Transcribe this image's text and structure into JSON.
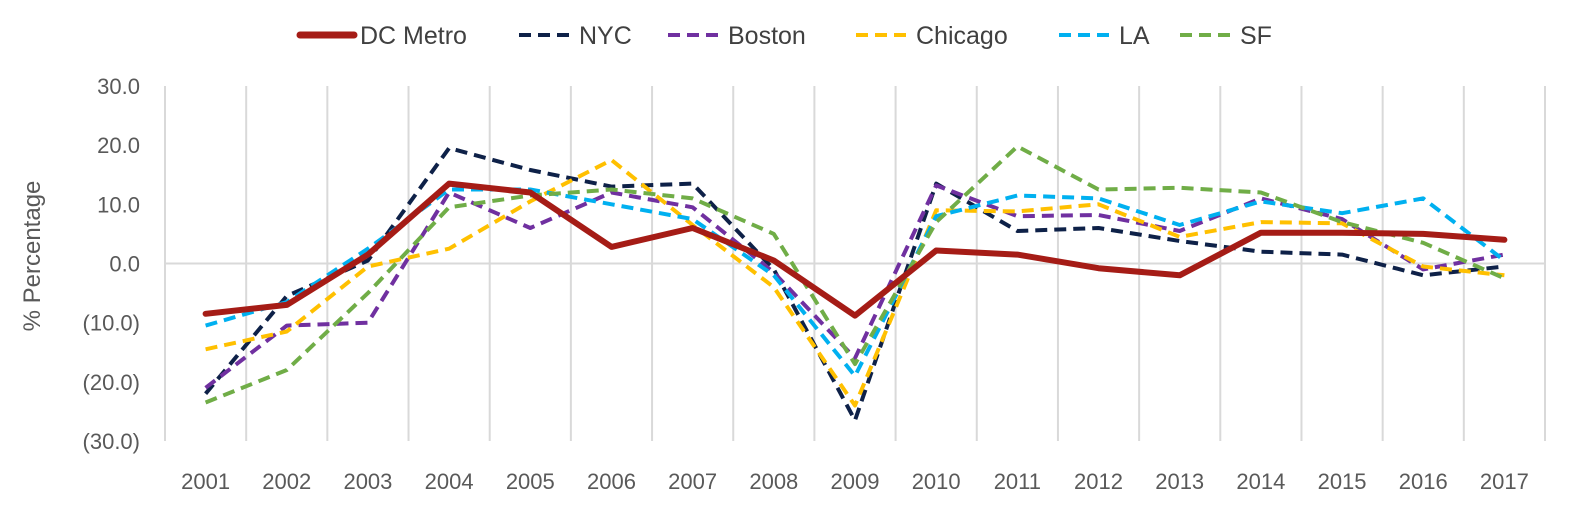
{
  "chart_data": {
    "type": "line",
    "title": "",
    "xlabel": "",
    "ylabel": "% Percentage",
    "ylim": [
      -30,
      30
    ],
    "yticks": [
      30,
      20,
      10,
      0,
      -10,
      -20,
      -30
    ],
    "ytick_labels": [
      "30.0",
      "20.0",
      "10.0",
      "0.0",
      "(10.0)",
      "(20.0)",
      "(30.0)"
    ],
    "categories": [
      "2001",
      "2002",
      "2003",
      "2004",
      "2005",
      "2006",
      "2007",
      "2008",
      "2009",
      "2010",
      "2011",
      "2012",
      "2013",
      "2014",
      "2015",
      "2016",
      "2017"
    ],
    "grid": "vertical",
    "legend_position": "top",
    "series": [
      {
        "name": "DC Metro",
        "color": "#a51c16",
        "style": "solid",
        "values": [
          -8.5,
          -7.0,
          1.5,
          13.5,
          12.0,
          2.8,
          6.0,
          0.5,
          -8.8,
          2.2,
          1.5,
          -0.8,
          -2.0,
          5.2,
          5.2,
          5.0,
          4.0
        ]
      },
      {
        "name": "NYC",
        "color": "#0e2148",
        "style": "dashed",
        "values": [
          -22.0,
          -5.5,
          0.5,
          19.5,
          15.8,
          13.0,
          13.5,
          -1.0,
          -26.5,
          13.5,
          5.5,
          6.0,
          3.8,
          2.0,
          1.5,
          -2.0,
          -0.5
        ]
      },
      {
        "name": "Boston",
        "color": "#7030a0",
        "style": "dashed",
        "values": [
          -21.0,
          -10.5,
          -10.0,
          12.0,
          6.0,
          12.0,
          9.5,
          -1.5,
          -16.0,
          13.2,
          8.0,
          8.2,
          5.5,
          11.0,
          7.5,
          -1.0,
          1.5
        ]
      },
      {
        "name": "Chicago",
        "color": "#ffc000",
        "style": "dashed",
        "values": [
          -14.5,
          -11.5,
          -0.5,
          2.5,
          10.5,
          17.5,
          6.5,
          -4.0,
          -24.0,
          9.0,
          8.8,
          10.0,
          4.5,
          7.0,
          6.8,
          -0.5,
          -2.0
        ]
      },
      {
        "name": "LA",
        "color": "#00b0f0",
        "style": "dashed",
        "values": [
          -10.5,
          -6.5,
          2.5,
          12.5,
          12.5,
          10.0,
          7.5,
          -2.0,
          -19.0,
          8.0,
          11.5,
          11.0,
          6.5,
          10.5,
          8.5,
          11.0,
          0.5
        ]
      },
      {
        "name": "SF",
        "color": "#70ad47",
        "style": "dashed",
        "values": [
          -23.5,
          -18.0,
          -5.0,
          9.5,
          11.5,
          12.5,
          11.0,
          5.0,
          -17.0,
          7.0,
          19.8,
          12.5,
          12.8,
          12.0,
          7.0,
          3.5,
          -2.5
        ]
      }
    ]
  }
}
